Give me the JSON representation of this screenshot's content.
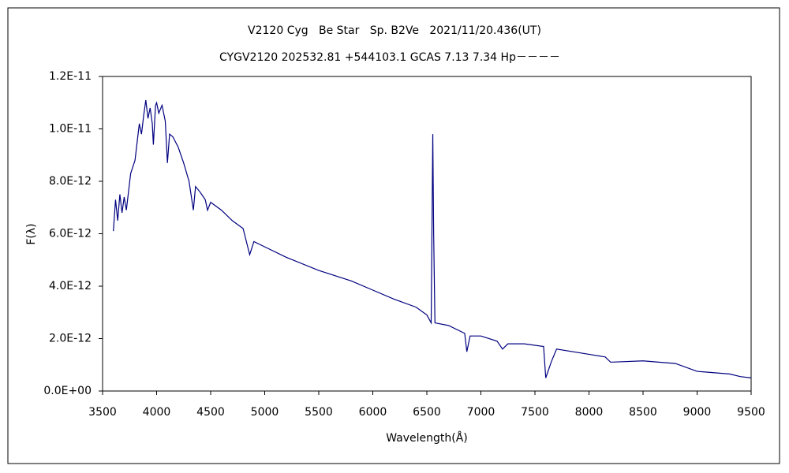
{
  "chart_data": {
    "type": "line",
    "title": "V2120 Cyg   Be Star   Sp. B2Ve   2021/11/20.436(UT)",
    "subtitle": "CYGV2120 202532.81 +544103.1 GCAS 7.13 7.34 Hp－－－－",
    "x_label": "Wavelength(Å)",
    "y_label": "F(λ)",
    "color": "#000080",
    "x": [
      3600,
      3620,
      3640,
      3660,
      3680,
      3700,
      3720,
      3740,
      3760,
      3800,
      3820,
      3840,
      3860,
      3880,
      3900,
      3920,
      3940,
      3960,
      3970,
      3990,
      4000,
      4020,
      4050,
      4080,
      4100,
      4120,
      4150,
      4200,
      4250,
      4300,
      4340,
      4360,
      4400,
      4450,
      4471,
      4500,
      4600,
      4700,
      4800,
      4861,
      4900,
      5000,
      5200,
      5500,
      5800,
      6000,
      6200,
      6400,
      6500,
      6540,
      6555,
      6563,
      6575,
      6700,
      6850,
      6870,
      6900,
      7000,
      7150,
      7200,
      7250,
      7400,
      7580,
      7600,
      7650,
      7700,
      8000,
      8150,
      8200,
      8500,
      8800,
      9000,
      9300,
      9400,
      9500
    ],
    "values": [
      6.1e-12,
      7.3e-12,
      6.5e-12,
      7.5e-12,
      6.8e-12,
      7.4e-12,
      6.9e-12,
      7.6e-12,
      8.3e-12,
      8.8e-12,
      9.5e-12,
      1.02e-11,
      9.8e-12,
      1.05e-11,
      1.11e-11,
      1.04e-11,
      1.08e-11,
      1.02e-11,
      9.4e-12,
      1.09e-11,
      1.1e-11,
      1.06e-11,
      1.09e-11,
      1.03e-11,
      8.7e-12,
      9.8e-12,
      9.7e-12,
      9.3e-12,
      8.7e-12,
      8e-12,
      6.9e-12,
      7.8e-12,
      7.6e-12,
      7.3e-12,
      6.9e-12,
      7.2e-12,
      6.9e-12,
      6.5e-12,
      6.2e-12,
      5.2e-12,
      5.7e-12,
      5.5e-12,
      5.1e-12,
      4.6e-12,
      4.2e-12,
      3.85e-12,
      3.5e-12,
      3.2e-12,
      2.9e-12,
      2.6e-12,
      9.8e-12,
      6e-12,
      2.6e-12,
      2.5e-12,
      2.2e-12,
      1.5e-12,
      2.1e-12,
      2.1e-12,
      1.9e-12,
      1.6e-12,
      1.8e-12,
      1.8e-12,
      1.7e-12,
      5e-13,
      1.1e-12,
      1.6e-12,
      1.4e-12,
      1.3e-12,
      1.1e-12,
      1.15e-12,
      1.05e-12,
      7.5e-13,
      6.5e-13,
      5.5e-13,
      5e-13
    ],
    "xlim": [
      3500,
      9500
    ],
    "xticks": [
      3500,
      4000,
      4500,
      5000,
      5500,
      6000,
      6500,
      7000,
      7500,
      8000,
      8500,
      9000,
      9500
    ],
    "ylim": [
      0,
      1.2e-11
    ],
    "yticks": [
      {
        "value": 0,
        "label": "0.0E+00"
      },
      {
        "value": 2e-12,
        "label": "2.0E-12"
      },
      {
        "value": 4e-12,
        "label": "4.0E-12"
      },
      {
        "value": 6e-12,
        "label": "6.0E-12"
      },
      {
        "value": 8e-12,
        "label": "8.0E-12"
      },
      {
        "value": 1e-11,
        "label": "1.0E-11"
      },
      {
        "value": 1.2e-11,
        "label": "1.2E-11"
      }
    ],
    "grid": false
  }
}
